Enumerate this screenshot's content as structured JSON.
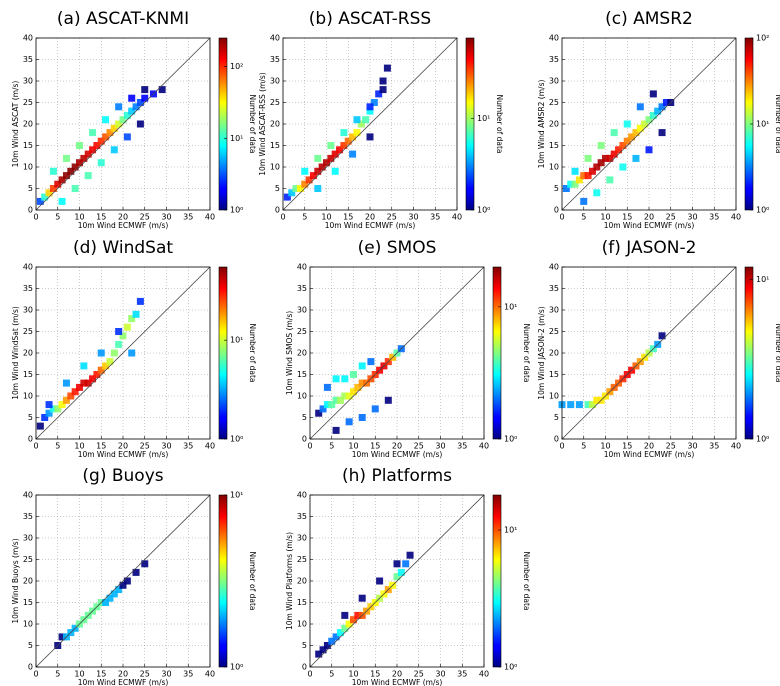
{
  "chart_data": [
    {
      "type": "scatter",
      "title": "(a) ASCAT-KNMI",
      "xlabel": "10m Wind ECMWF (m/s)",
      "ylabel": "10m Wind ASCAT (m/s)",
      "xlim": [
        0,
        40
      ],
      "ylim": [
        0,
        40
      ],
      "xticks": [
        0,
        5,
        10,
        15,
        20,
        25,
        30,
        35,
        40
      ],
      "yticks": [
        0,
        5,
        10,
        15,
        20,
        25,
        30,
        35,
        40
      ],
      "grid": true,
      "colormap": "jet",
      "color_scale": "log",
      "colorbar_label": "Number of data",
      "clim": [
        1,
        250
      ],
      "cticks": [
        {
          "value": 1,
          "label": "10⁰"
        },
        {
          "value": 10,
          "label": "10¹"
        },
        {
          "value": 100,
          "label": "10²"
        }
      ],
      "x": [
        1,
        2,
        3,
        4,
        5,
        6,
        7,
        8,
        9,
        10,
        11,
        12,
        13,
        14,
        15,
        16,
        17,
        18,
        19,
        20,
        21,
        22,
        23,
        24,
        25,
        27,
        29,
        4,
        7,
        10,
        13,
        16,
        19,
        22,
        25,
        6,
        9,
        12,
        15,
        18,
        21,
        24
      ],
      "y": [
        2,
        3,
        4,
        5,
        6,
        7,
        8,
        9,
        10,
        11,
        12,
        13,
        14,
        15,
        16,
        17,
        18,
        19,
        20,
        21,
        22,
        23,
        24,
        25,
        26,
        27,
        28,
        9,
        12,
        15,
        18,
        21,
        24,
        26,
        28,
        2,
        5,
        8,
        11,
        14,
        17,
        20
      ],
      "density": [
        3,
        10,
        40,
        90,
        150,
        200,
        230,
        240,
        230,
        200,
        180,
        160,
        140,
        120,
        100,
        80,
        60,
        40,
        25,
        15,
        10,
        6,
        4,
        3,
        2,
        2,
        1,
        10,
        15,
        15,
        12,
        8,
        4,
        2,
        1,
        8,
        12,
        12,
        10,
        6,
        3,
        1
      ]
    },
    {
      "type": "scatter",
      "title": "(b) ASCAT-RSS",
      "xlabel": "10m Wind ECMWF (m/s)",
      "ylabel": "10m Wind ASCAT-RSS (m/s)",
      "xlim": [
        0,
        40
      ],
      "ylim": [
        0,
        40
      ],
      "xticks": [
        0,
        5,
        10,
        15,
        20,
        25,
        30,
        35,
        40
      ],
      "yticks": [
        0,
        5,
        10,
        15,
        20,
        25,
        30,
        35,
        40
      ],
      "grid": true,
      "colormap": "jet",
      "color_scale": "log",
      "colorbar_label": "Number of data",
      "clim": [
        1,
        75
      ],
      "cticks": [
        {
          "value": 1,
          "label": "10⁰"
        },
        {
          "value": 10,
          "label": "10¹"
        }
      ],
      "x": [
        1,
        2,
        3,
        4,
        5,
        6,
        7,
        8,
        9,
        10,
        11,
        12,
        13,
        14,
        15,
        16,
        17,
        18,
        19,
        20,
        21,
        22,
        23,
        24,
        5,
        8,
        11,
        14,
        17,
        20,
        23,
        8,
        12,
        16,
        20
      ],
      "y": [
        3,
        4,
        5,
        5,
        6,
        7,
        8,
        9,
        10,
        11,
        12,
        13,
        14,
        15,
        16,
        17,
        18,
        20,
        21,
        23,
        25,
        27,
        30,
        33,
        9,
        12,
        15,
        18,
        21,
        24,
        28,
        5,
        9,
        13,
        17
      ],
      "density": [
        2,
        4,
        8,
        15,
        25,
        35,
        45,
        55,
        60,
        60,
        55,
        50,
        45,
        35,
        28,
        20,
        15,
        10,
        7,
        5,
        3,
        2,
        1,
        1,
        5,
        8,
        8,
        6,
        4,
        2,
        1,
        4,
        5,
        3,
        1
      ]
    },
    {
      "type": "scatter",
      "title": "(c) AMSR2",
      "xlabel": "10m Wind ECMWF (m/s)",
      "ylabel": "10m Wind AMSR2 (m/s)",
      "xlim": [
        0,
        40
      ],
      "ylim": [
        0,
        40
      ],
      "xticks": [
        0,
        5,
        10,
        15,
        20,
        25,
        30,
        35,
        40
      ],
      "yticks": [
        0,
        5,
        10,
        15,
        20,
        25,
        30,
        35,
        40
      ],
      "grid": true,
      "colormap": "jet",
      "color_scale": "log",
      "colorbar_label": "Number of data",
      "clim": [
        1,
        100
      ],
      "cticks": [
        {
          "value": 1,
          "label": "10⁰"
        },
        {
          "value": 10,
          "label": "10¹"
        },
        {
          "value": 100,
          "label": "10²"
        }
      ],
      "x": [
        1,
        2,
        3,
        4,
        5,
        6,
        7,
        8,
        9,
        10,
        11,
        12,
        13,
        14,
        15,
        16,
        17,
        18,
        19,
        20,
        21,
        22,
        23,
        24,
        25,
        3,
        6,
        9,
        12,
        15,
        18,
        21,
        5,
        8,
        11,
        14,
        17,
        20,
        23
      ],
      "y": [
        5,
        6,
        6,
        7,
        8,
        8,
        9,
        10,
        11,
        12,
        12,
        13,
        14,
        15,
        16,
        17,
        18,
        19,
        20,
        21,
        22,
        23,
        24,
        25,
        25,
        9,
        12,
        15,
        18,
        20,
        24,
        27,
        2,
        4,
        7,
        10,
        12,
        14,
        18
      ],
      "density": [
        3,
        6,
        10,
        20,
        35,
        50,
        65,
        80,
        85,
        80,
        70,
        60,
        50,
        40,
        32,
        28,
        24,
        18,
        14,
        10,
        7,
        4,
        3,
        2,
        1,
        5,
        10,
        10,
        8,
        6,
        3,
        1,
        3,
        6,
        8,
        6,
        4,
        2,
        1
      ]
    },
    {
      "type": "scatter",
      "title": "(d) WindSat",
      "xlabel": "10m Wind ECMWF (m/s)",
      "ylabel": "10m Wind WindSat (m/s)",
      "xlim": [
        0,
        40
      ],
      "ylim": [
        0,
        40
      ],
      "xticks": [
        0,
        5,
        10,
        15,
        20,
        25,
        30,
        35,
        40
      ],
      "yticks": [
        0,
        5,
        10,
        15,
        20,
        25,
        30,
        35,
        40
      ],
      "grid": true,
      "colormap": "jet",
      "color_scale": "log",
      "colorbar_label": "Number of data",
      "clim": [
        1,
        55
      ],
      "cticks": [
        {
          "value": 1,
          "label": "10⁰"
        },
        {
          "value": 10,
          "label": "10¹"
        }
      ],
      "x": [
        1,
        2,
        3,
        4,
        5,
        6,
        7,
        8,
        9,
        10,
        11,
        12,
        13,
        14,
        15,
        16,
        17,
        18,
        19,
        20,
        21,
        22,
        23,
        24,
        3,
        7,
        11,
        15,
        19,
        22
      ],
      "y": [
        3,
        5,
        6,
        7,
        7,
        8,
        9,
        10,
        11,
        12,
        13,
        13,
        14,
        15,
        16,
        17,
        18,
        20,
        22,
        24,
        26,
        28,
        29,
        32,
        8,
        13,
        17,
        20,
        25,
        20
      ],
      "density": [
        1,
        2,
        3,
        5,
        8,
        12,
        18,
        25,
        30,
        35,
        40,
        40,
        35,
        30,
        22,
        15,
        10,
        8,
        6,
        8,
        10,
        8,
        4,
        2,
        2,
        3,
        4,
        3,
        2,
        3
      ]
    },
    {
      "type": "scatter",
      "title": "(e) SMOS",
      "xlabel": "10m Wind ECMWF (m/s)",
      "ylabel": "10m Wind SMOS (m/s)",
      "xlim": [
        0,
        40
      ],
      "ylim": [
        0,
        40
      ],
      "xticks": [
        0,
        5,
        10,
        15,
        20,
        25,
        30,
        35,
        40
      ],
      "yticks": [
        0,
        5,
        10,
        15,
        20,
        25,
        30,
        35,
        40
      ],
      "grid": true,
      "colormap": "jet",
      "color_scale": "log",
      "colorbar_label": "Number of data",
      "clim": [
        1,
        20
      ],
      "cticks": [
        {
          "value": 1,
          "label": "10⁰"
        },
        {
          "value": 10,
          "label": "10¹"
        }
      ],
      "x": [
        2,
        3,
        4,
        5,
        6,
        7,
        8,
        9,
        10,
        11,
        12,
        13,
        14,
        15,
        16,
        17,
        18,
        19,
        20,
        21,
        4,
        6,
        8,
        10,
        12,
        14,
        6,
        9,
        12,
        15,
        18
      ],
      "y": [
        6,
        7,
        8,
        8,
        9,
        9,
        10,
        10,
        11,
        12,
        13,
        13,
        14,
        15,
        16,
        17,
        18,
        19,
        20,
        21,
        12,
        14,
        14,
        15,
        17,
        18,
        2,
        4,
        5,
        7,
        9
      ],
      "density": [
        1,
        2,
        3,
        4,
        4,
        5,
        5,
        6,
        7,
        8,
        9,
        10,
        11,
        12,
        14,
        15,
        12,
        8,
        4,
        2,
        2,
        3,
        3,
        4,
        3,
        2,
        1,
        2,
        2,
        2,
        1
      ]
    },
    {
      "type": "scatter",
      "title": "(f) JASON-2",
      "xlabel": "10m Wind ECMWF (m/s)",
      "ylabel": "10m Wind JASON-2 (m/s)",
      "xlim": [
        0,
        40
      ],
      "ylim": [
        0,
        40
      ],
      "xticks": [
        0,
        5,
        10,
        15,
        20,
        25,
        30,
        35,
        40
      ],
      "yticks": [
        0,
        5,
        10,
        15,
        20,
        25,
        30,
        35,
        40
      ],
      "grid": true,
      "colormap": "jet",
      "color_scale": "log",
      "colorbar_label": "Number of data",
      "clim": [
        1,
        12
      ],
      "cticks": [
        {
          "value": 1,
          "label": "10⁰"
        },
        {
          "value": 10,
          "label": "10¹"
        }
      ],
      "x": [
        0,
        2,
        4,
        6,
        7,
        8,
        9,
        10,
        11,
        12,
        13,
        14,
        15,
        16,
        17,
        18,
        19,
        20,
        21,
        22,
        23
      ],
      "y": [
        8,
        8,
        8,
        8,
        8,
        9,
        9,
        10,
        11,
        12,
        13,
        14,
        15,
        16,
        17,
        18,
        19,
        20,
        21,
        22,
        24
      ],
      "density": [
        2,
        2,
        2,
        3,
        4,
        5,
        5,
        5,
        6,
        7,
        7,
        8,
        9,
        9,
        7,
        6,
        5,
        4,
        3,
        2,
        1
      ]
    },
    {
      "type": "scatter",
      "title": "(g) Buoys",
      "xlabel": "10m Wind ECMWF (m/s)",
      "ylabel": "10m Wind Buoys (m/s)",
      "xlim": [
        0,
        40
      ],
      "ylim": [
        0,
        40
      ],
      "xticks": [
        0,
        5,
        10,
        15,
        20,
        25,
        30,
        35,
        40
      ],
      "yticks": [
        0,
        5,
        10,
        15,
        20,
        25,
        30,
        35,
        40
      ],
      "grid": true,
      "colormap": "jet",
      "color_scale": "log",
      "colorbar_label": "Number of data",
      "clim": [
        1,
        10
      ],
      "cticks": [
        {
          "value": 1,
          "label": "10⁰"
        },
        {
          "value": 10,
          "label": "10¹"
        }
      ],
      "x": [
        5,
        6,
        7,
        8,
        9,
        10,
        11,
        12,
        13,
        14,
        15,
        16,
        17,
        18,
        19,
        20,
        21,
        23,
        25
      ],
      "y": [
        5,
        7,
        7,
        8,
        9,
        10,
        11,
        12,
        13,
        14,
        15,
        15,
        16,
        17,
        18,
        19,
        20,
        22,
        24
      ],
      "density": [
        1,
        1,
        2,
        2,
        2,
        3,
        3,
        3,
        3,
        3,
        3,
        2,
        2,
        2,
        2,
        1,
        1,
        1,
        1
      ]
    },
    {
      "type": "scatter",
      "title": "(h) Platforms",
      "xlabel": "10m Wind ECMWF (m/s)",
      "ylabel": "10m Wind Platforms (m/s)",
      "xlim": [
        0,
        40
      ],
      "ylim": [
        0,
        40
      ],
      "xticks": [
        0,
        5,
        10,
        15,
        20,
        25,
        30,
        35,
        40
      ],
      "yticks": [
        0,
        5,
        10,
        15,
        20,
        25,
        30,
        35,
        40
      ],
      "grid": true,
      "colormap": "jet",
      "color_scale": "log",
      "colorbar_label": "Number of data",
      "clim": [
        1,
        18
      ],
      "cticks": [
        {
          "value": 1,
          "label": "10⁰"
        },
        {
          "value": 10,
          "label": "10¹"
        }
      ],
      "x": [
        2,
        3,
        4,
        5,
        6,
        7,
        8,
        9,
        10,
        11,
        12,
        13,
        14,
        15,
        16,
        17,
        18,
        19,
        20,
        21,
        22,
        23,
        8,
        12,
        16,
        20
      ],
      "y": [
        3,
        4,
        5,
        6,
        7,
        8,
        9,
        10,
        11,
        12,
        12,
        13,
        14,
        15,
        16,
        17,
        18,
        19,
        21,
        22,
        24,
        26,
        12,
        16,
        20,
        24
      ],
      "density": [
        1,
        1,
        1,
        2,
        2,
        3,
        4,
        6,
        10,
        12,
        10,
        8,
        7,
        6,
        5,
        6,
        8,
        6,
        4,
        3,
        2,
        1,
        1,
        1,
        1,
        1
      ]
    }
  ]
}
